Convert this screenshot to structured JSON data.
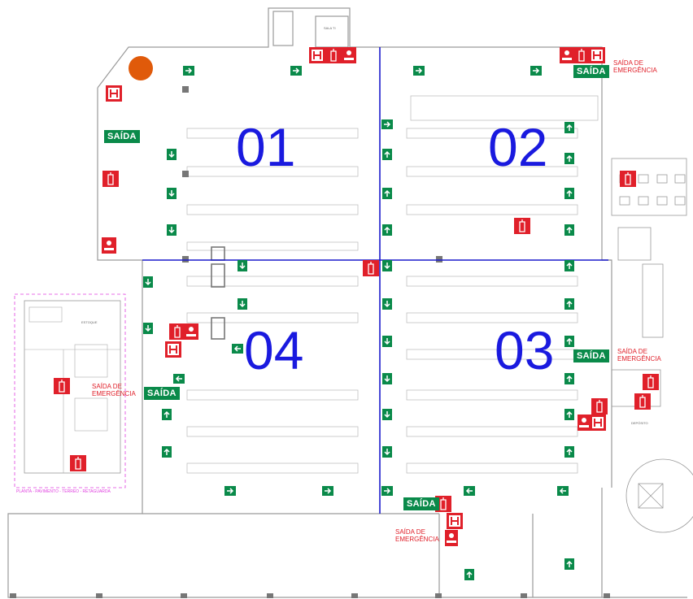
{
  "zones": [
    {
      "label": "01"
    },
    {
      "label": "02"
    },
    {
      "label": "03"
    },
    {
      "label": "04"
    }
  ],
  "exit_labels": [
    {
      "line1": "SAÍDA DE",
      "line2": "EMERGÊNCIA"
    },
    {
      "line1": "SAÍDA DE",
      "line2": "EMERGÊNCIA"
    },
    {
      "line1": "SAÍDA DE",
      "line2": "EMERGÊNCIA"
    },
    {
      "line1": "SAÍDA DE",
      "line2": "EMERGÊNCIA"
    }
  ],
  "saida_signs": [
    "SAÍDA",
    "SAÍDA",
    "SAÍDA",
    "SAÍDA",
    "SAÍDA"
  ],
  "small_labels": {
    "sala": "SALA TI",
    "estoque": "ESTOQUE",
    "deposito": "DEPÓSITO",
    "annex_title": "PLANTA - PAVIMENTO - TÉRREO - RETAGUARDA"
  },
  "colors": {
    "zone_label": "#1a1adf",
    "divider": "#1a1acc",
    "exit_text": "#e0202a",
    "exit_sign": "#0a8a4a",
    "fire_equipment": "#e0202a",
    "marker": "#e05a0a",
    "walls": "#888888",
    "annex_border": "#e040e0"
  },
  "icons": {
    "extinguisher": "fire-extinguisher-icon",
    "hydrant": "hydrant-icon",
    "alarm": "alarm-icon",
    "arrow": "exit-arrow-icon",
    "marker": "location-marker-icon"
  }
}
